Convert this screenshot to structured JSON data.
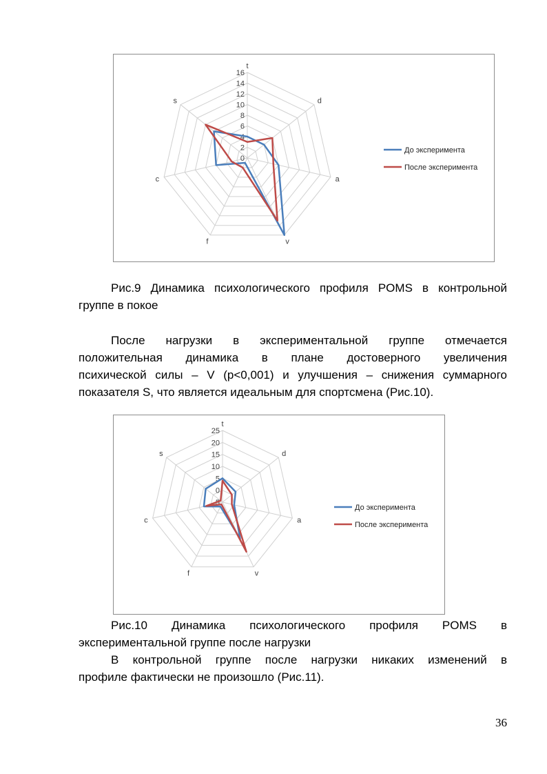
{
  "chart_data": [
    {
      "type": "radar",
      "axes": [
        "t",
        "d",
        "a",
        "v",
        "f",
        "c",
        "s"
      ],
      "ticks": [
        "0",
        "2",
        "4",
        "6",
        "8",
        "10",
        "12",
        "14",
        "16"
      ],
      "rmin": 0,
      "rmax": 16,
      "series": [
        {
          "name": "До эксперимента",
          "color": "#4a7ebb",
          "values": [
            4,
            4,
            6,
            16,
            1,
            6,
            8
          ]
        },
        {
          "name": "После эксперимента",
          "color": "#be4b48",
          "values": [
            3,
            6,
            5,
            13,
            2,
            3,
            10
          ]
        }
      ],
      "legend": "right"
    },
    {
      "type": "radar",
      "axes": [
        "t",
        "d",
        "a",
        "v",
        "f",
        "c",
        "s"
      ],
      "ticks": [
        "-5",
        "0",
        "5",
        "10",
        "15",
        "20",
        "25"
      ],
      "rmin": -5,
      "rmax": 25,
      "series": [
        {
          "name": "До эксперимента",
          "color": "#4a7ebb",
          "values": [
            5,
            2,
            0,
            12,
            -3,
            3,
            4
          ]
        },
        {
          "name": "После эксперимента",
          "color": "#be4b48",
          "values": [
            4,
            0,
            -1,
            18,
            -4,
            2,
            -4
          ]
        }
      ],
      "legend": "right"
    }
  ],
  "text": {
    "caption1_line1": "Рис.9 Динамика психологического профиля POMS в контрольной",
    "caption1_line2": "группе в покое",
    "para1_line1": "После нагрузки в экспериментальной группе отмечается",
    "para1_line2": "положительная динамика в плане достоверного увеличения",
    "para1_line3": "психической силы – V (p<0,001) и улучшения – снижения суммарного",
    "para1_line4": "показателя S, что является идеальным для спортсмена (Рис.10).",
    "caption2_line1": "Рис.10 Динамика психологического профиля POMS в",
    "caption2_line2": "экспериментальной группе после нагрузки",
    "para2_line1": "В контрольной группе после нагрузки никаких изменений в",
    "para2_line2": "профиле фактически не произошло (Рис.11).",
    "page_number": "36"
  }
}
